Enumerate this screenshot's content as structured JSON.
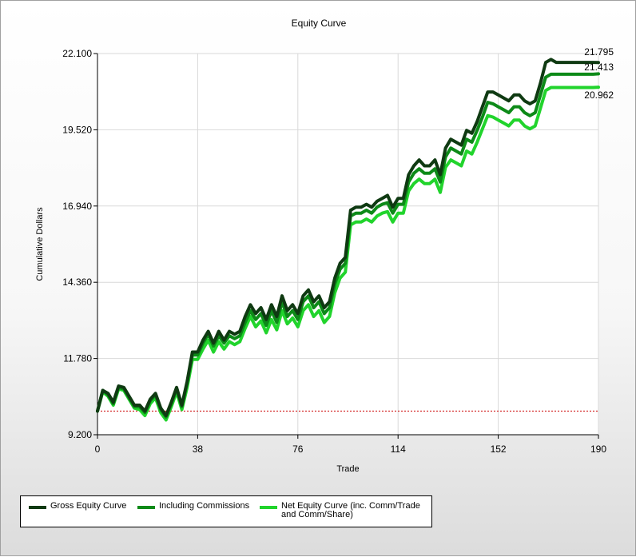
{
  "chart_data": {
    "type": "line",
    "title": "Equity Curve",
    "xlabel": "Trade",
    "ylabel": "Cumulative Dollars",
    "xlim": [
      0,
      190
    ],
    "ylim": [
      9.2,
      22.1
    ],
    "x_ticks": [
      "0",
      "38",
      "76",
      "114",
      "152",
      "190"
    ],
    "y_ticks": [
      "9.200",
      "11.780",
      "14.360",
      "16.940",
      "19.520",
      "22.100"
    ],
    "grid": true,
    "baseline": 10.0,
    "baseline_color": "#cc0000",
    "legend_position": "bottom-left",
    "end_labels": [
      "21.795",
      "21.413",
      "20.962"
    ],
    "x": [
      0,
      2,
      4,
      6,
      8,
      10,
      12,
      14,
      16,
      18,
      20,
      22,
      24,
      26,
      28,
      30,
      32,
      34,
      36,
      38,
      40,
      42,
      44,
      46,
      48,
      50,
      52,
      54,
      56,
      58,
      60,
      62,
      64,
      66,
      68,
      70,
      72,
      74,
      76,
      78,
      80,
      82,
      84,
      86,
      88,
      90,
      92,
      94,
      96,
      98,
      100,
      102,
      104,
      106,
      108,
      110,
      112,
      114,
      116,
      118,
      120,
      122,
      124,
      126,
      128,
      130,
      132,
      134,
      136,
      138,
      140,
      142,
      144,
      146,
      148,
      150,
      152,
      154,
      156,
      158,
      160,
      162,
      164,
      166,
      168,
      170,
      172,
      174,
      176,
      178,
      180,
      182,
      184,
      186,
      188,
      190
    ],
    "series": [
      {
        "name": "Gross Equity Curve",
        "color": "#0f3a12",
        "values": [
          10.0,
          10.7,
          10.6,
          10.3,
          10.85,
          10.8,
          10.5,
          10.2,
          10.2,
          10.0,
          10.4,
          10.6,
          10.1,
          9.85,
          10.3,
          10.8,
          10.2,
          11.0,
          12.0,
          12.0,
          12.4,
          12.7,
          12.3,
          12.7,
          12.4,
          12.7,
          12.6,
          12.7,
          13.2,
          13.6,
          13.3,
          13.5,
          13.1,
          13.6,
          13.2,
          13.9,
          13.4,
          13.6,
          13.3,
          13.9,
          14.1,
          13.7,
          13.9,
          13.5,
          13.7,
          14.5,
          15.0,
          15.2,
          16.8,
          16.9,
          16.9,
          17.0,
          16.9,
          17.1,
          17.2,
          17.3,
          16.9,
          17.2,
          17.2,
          18.0,
          18.3,
          18.5,
          18.3,
          18.3,
          18.5,
          18.0,
          18.9,
          19.2,
          19.1,
          19.0,
          19.5,
          19.4,
          19.8,
          20.3,
          20.8,
          20.8,
          20.7,
          20.6,
          20.5,
          20.7,
          20.7,
          20.5,
          20.4,
          20.5,
          21.1,
          21.8,
          21.9,
          21.8,
          21.8,
          21.8,
          21.8,
          21.8,
          21.8,
          21.8,
          21.8,
          21.795
        ]
      },
      {
        "name": "Including Commissions",
        "color": "#0d8a18",
        "values": [
          10.0,
          10.7,
          10.55,
          10.25,
          10.8,
          10.75,
          10.45,
          10.15,
          10.15,
          9.95,
          10.35,
          10.55,
          10.05,
          9.8,
          10.25,
          10.75,
          10.15,
          10.95,
          11.9,
          11.9,
          12.3,
          12.6,
          12.2,
          12.55,
          12.3,
          12.55,
          12.45,
          12.55,
          13.0,
          13.4,
          13.1,
          13.3,
          12.9,
          13.4,
          13.0,
          13.7,
          13.2,
          13.4,
          13.1,
          13.7,
          13.9,
          13.5,
          13.7,
          13.3,
          13.5,
          14.3,
          14.8,
          15.0,
          16.6,
          16.7,
          16.7,
          16.8,
          16.7,
          16.9,
          17.0,
          17.05,
          16.7,
          17.0,
          17.0,
          17.75,
          18.05,
          18.2,
          18.05,
          18.05,
          18.2,
          17.75,
          18.6,
          18.9,
          18.8,
          18.7,
          19.2,
          19.1,
          19.5,
          19.95,
          20.45,
          20.4,
          20.3,
          20.2,
          20.1,
          20.3,
          20.3,
          20.1,
          20.0,
          20.1,
          20.7,
          21.3,
          21.4,
          21.4,
          21.4,
          21.4,
          21.4,
          21.4,
          21.4,
          21.4,
          21.4,
          21.413
        ]
      },
      {
        "name": "Net Equity Curve (inc. Comm/Trade and Comm/Share)",
        "color": "#21d42c",
        "values": [
          10.0,
          10.65,
          10.5,
          10.2,
          10.75,
          10.7,
          10.4,
          10.1,
          10.05,
          9.85,
          10.25,
          10.45,
          9.95,
          9.7,
          10.15,
          10.65,
          10.05,
          10.8,
          11.75,
          11.75,
          12.1,
          12.4,
          12.0,
          12.35,
          12.1,
          12.35,
          12.25,
          12.35,
          12.8,
          13.2,
          12.85,
          13.05,
          12.65,
          13.1,
          12.75,
          13.4,
          12.95,
          13.15,
          12.85,
          13.4,
          13.6,
          13.2,
          13.4,
          13.0,
          13.2,
          14.0,
          14.5,
          14.7,
          16.3,
          16.4,
          16.4,
          16.5,
          16.4,
          16.6,
          16.7,
          16.75,
          16.4,
          16.7,
          16.7,
          17.45,
          17.7,
          17.85,
          17.7,
          17.7,
          17.85,
          17.4,
          18.25,
          18.5,
          18.4,
          18.3,
          18.8,
          18.7,
          19.1,
          19.55,
          20.0,
          19.95,
          19.85,
          19.75,
          19.65,
          19.85,
          19.85,
          19.65,
          19.55,
          19.65,
          20.25,
          20.85,
          20.95,
          20.95,
          20.95,
          20.95,
          20.95,
          20.95,
          20.95,
          20.95,
          20.95,
          20.962
        ]
      }
    ]
  },
  "legend": {
    "items": [
      {
        "label": "Gross Equity Curve",
        "color": "#0f3a12"
      },
      {
        "label": "Including Commissions",
        "color": "#0d8a18"
      },
      {
        "label": "Net Equity Curve (inc. Comm/Trade\nand Comm/Share)",
        "color": "#21d42c"
      }
    ]
  }
}
